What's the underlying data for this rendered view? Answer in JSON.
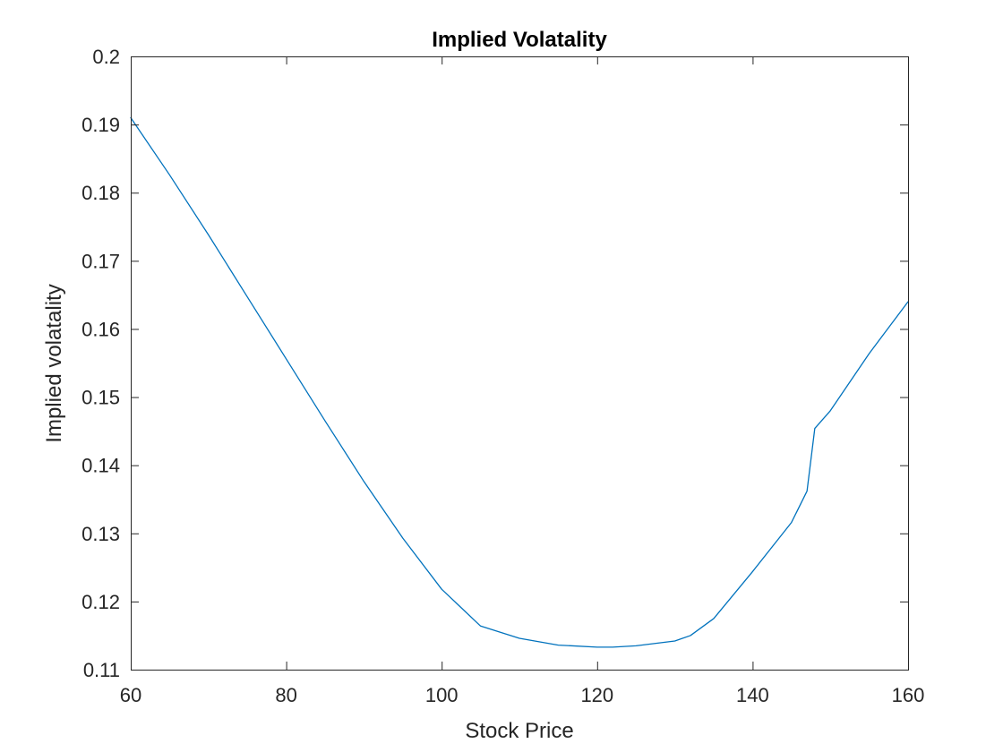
{
  "chart_data": {
    "type": "line",
    "title": "Implied Volatality",
    "xlabel": "Stock Price",
    "ylabel": "Implied volatality",
    "xlim": [
      60,
      160
    ],
    "ylim": [
      0.11,
      0.2
    ],
    "x_ticks": [
      60,
      80,
      100,
      120,
      140,
      160
    ],
    "x_tick_labels": [
      "60",
      "80",
      "100",
      "120",
      "140",
      "160"
    ],
    "y_ticks": [
      0.11,
      0.12,
      0.13,
      0.14,
      0.15,
      0.16,
      0.17,
      0.18,
      0.19,
      0.2
    ],
    "y_tick_labels": [
      "0.11",
      "0.12",
      "0.13",
      "0.14",
      "0.15",
      "0.16",
      "0.17",
      "0.18",
      "0.19",
      "0.2"
    ],
    "grid": false,
    "box": true,
    "colors": {
      "line": "#0072BD",
      "axes": "#262626",
      "background": "#FFFFFF"
    },
    "series": [
      {
        "x": [
          60,
          65,
          70,
          75,
          80,
          85,
          90,
          95,
          100,
          105,
          110,
          115,
          120,
          122,
          125,
          130,
          132,
          135,
          140,
          145,
          147,
          148,
          150,
          155,
          160
        ],
        "y": [
          0.191,
          0.1826,
          0.1738,
          0.1647,
          0.1556,
          0.1465,
          0.1376,
          0.1293,
          0.1218,
          0.1164,
          0.1146,
          0.1136,
          0.1133,
          0.1133,
          0.1135,
          0.1142,
          0.115,
          0.1175,
          0.1244,
          0.1316,
          0.1362,
          0.1454,
          0.148,
          0.1564,
          0.164
        ]
      }
    ]
  }
}
